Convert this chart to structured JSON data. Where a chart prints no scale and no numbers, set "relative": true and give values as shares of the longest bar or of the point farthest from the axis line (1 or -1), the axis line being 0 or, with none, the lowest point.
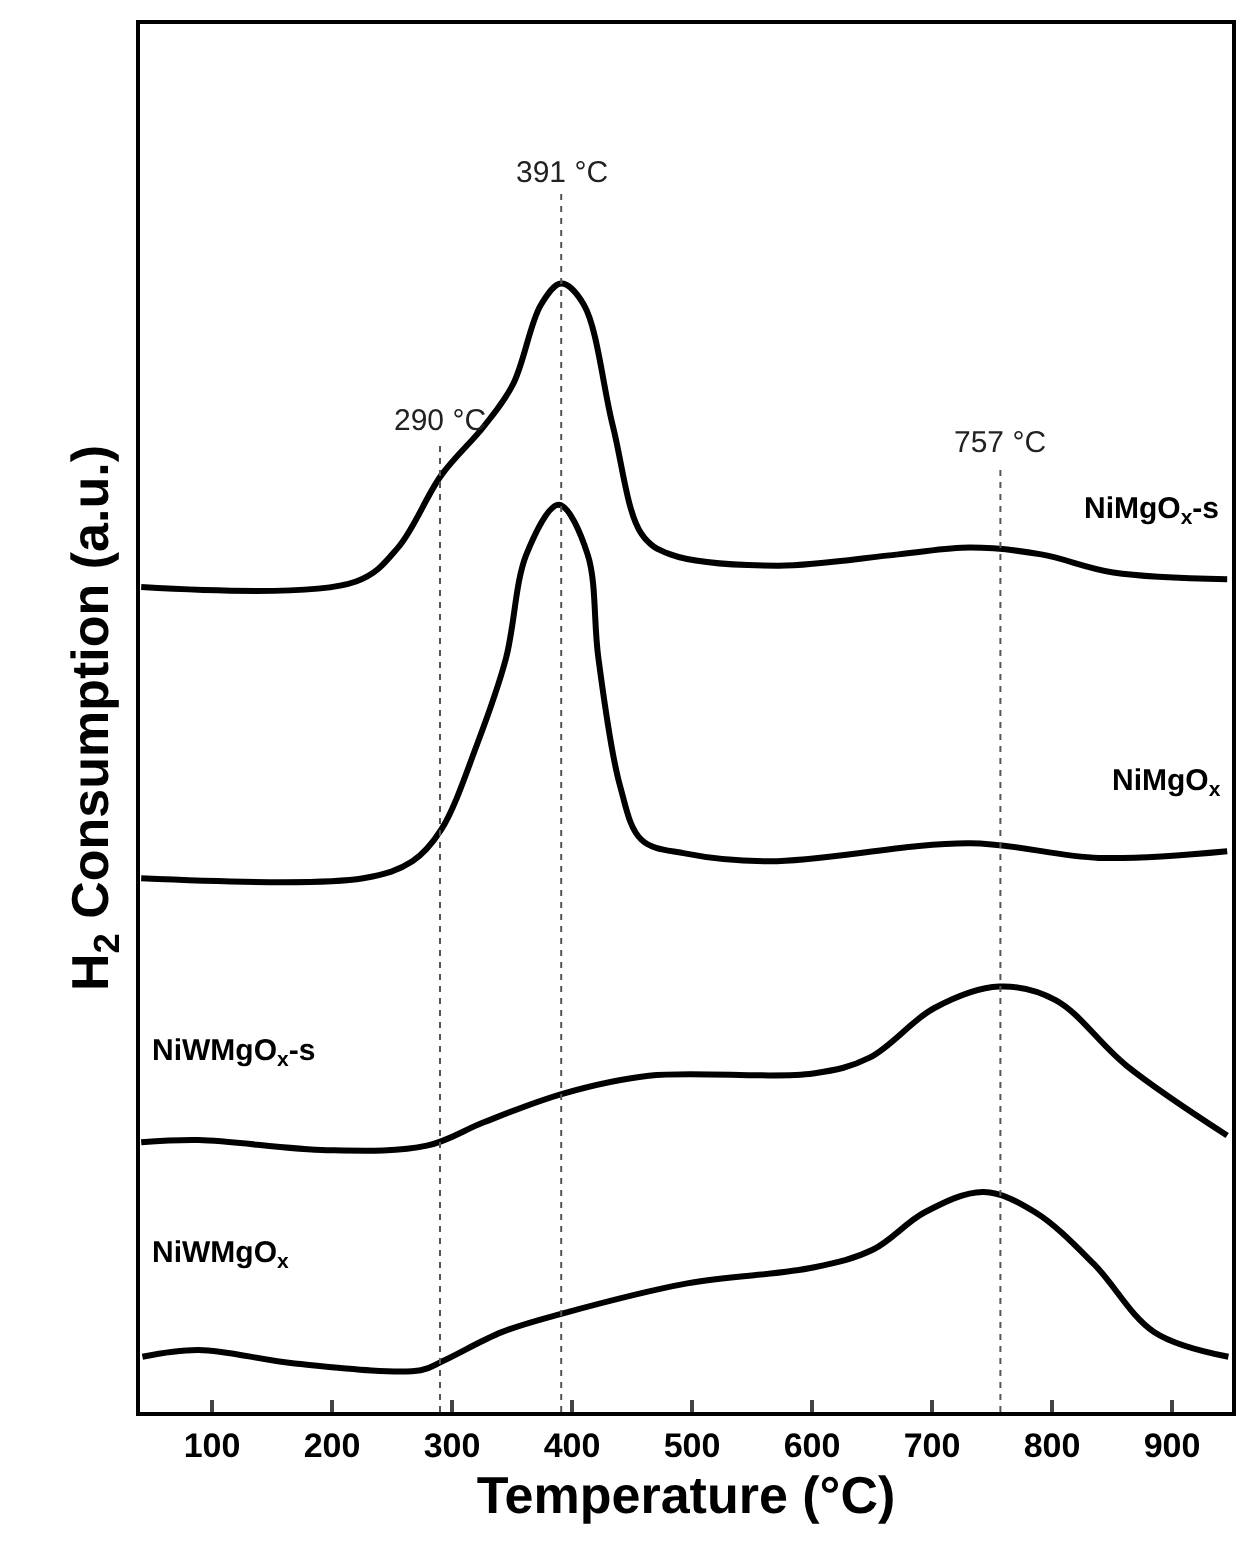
{
  "chart_data": {
    "type": "line",
    "relative": true,
    "xlabel": "Temperature (°C)",
    "ylabel": "H$_{2}$ Consumption (a.u.)",
    "xlim": [
      40,
      950
    ],
    "xticks": [
      100,
      200,
      300,
      400,
      500,
      600,
      700,
      800,
      900
    ],
    "legend": false,
    "marker": "none",
    "line_style": "solid",
    "series": [
      {
        "name": "NiMgO$_{x}$-s",
        "color": "#000000",
        "x": [
          41,
          220,
          255,
          291,
          327,
          351,
          374,
          391,
          410,
          434,
          458,
          482,
          571,
          672,
          732,
          791,
          851,
          946
        ],
        "values": [
          0.731,
          0.736,
          0.766,
          0.83,
          0.874,
          0.911,
          0.981,
          1.0,
          0.981,
          0.874,
          0.778,
          0.76,
          0.75,
          0.76,
          0.766,
          0.76,
          0.744,
          0.738
        ]
      },
      {
        "name": "NiMgO$_{x}$",
        "color": "#000000",
        "x": [
          41,
          226,
          267,
          291,
          321,
          345,
          362,
          389,
          413,
          422,
          440,
          458,
          494,
          565,
          732,
          839,
          946
        ],
        "values": [
          0.473,
          0.473,
          0.488,
          0.516,
          0.592,
          0.668,
          0.76,
          0.804,
          0.76,
          0.668,
          0.555,
          0.507,
          0.495,
          0.488,
          0.504,
          0.491,
          0.497
        ]
      },
      {
        "name": "NiWMgO$_{x}$-s",
        "color": "#000000",
        "x": [
          41,
          89,
          196,
          279,
          327,
          392,
          464,
          601,
          648,
          702,
          756,
          803,
          862,
          946
        ],
        "values": [
          0.239,
          0.241,
          0.232,
          0.236,
          0.257,
          0.282,
          0.298,
          0.3,
          0.314,
          0.358,
          0.377,
          0.365,
          0.307,
          0.245
        ]
      },
      {
        "name": "NiWMgO$_{x}$",
        "color": "#000000",
        "x": [
          42,
          89,
          169,
          274,
          292,
          342,
          391,
          496,
          601,
          651,
          694,
          743,
          786,
          835,
          885,
          947
        ],
        "values": [
          0.049,
          0.055,
          0.043,
          0.037,
          0.045,
          0.071,
          0.087,
          0.114,
          0.128,
          0.144,
          0.177,
          0.195,
          0.177,
          0.131,
          0.071,
          0.049
        ]
      }
    ],
    "ref_lines": [
      {
        "axis": "x",
        "value": 290,
        "label": "290 °C",
        "color": "#555555",
        "line_style": "dotted"
      },
      {
        "axis": "x",
        "value": 391,
        "label": "391 °C",
        "color": "#555555",
        "line_style": "dotted"
      },
      {
        "axis": "x",
        "value": 757,
        "label": "757 °C",
        "color": "#555555",
        "line_style": "dotted"
      }
    ]
  }
}
